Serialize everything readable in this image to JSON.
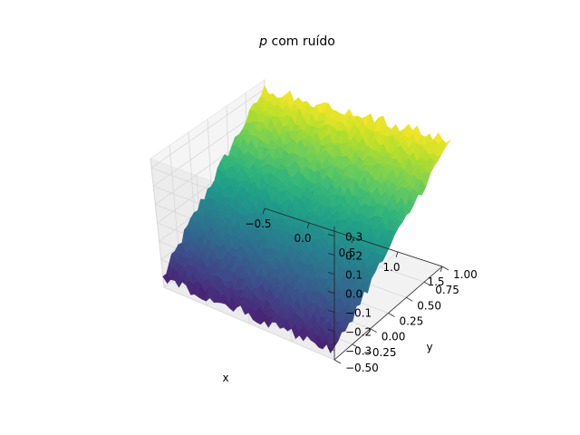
{
  "chart_data": {
    "type": "surface",
    "title_italic": "p",
    "title_rest": " com ruído",
    "xlabel": "x",
    "ylabel": "y",
    "zlabel": "",
    "xlim": [
      -0.5,
      1.5
    ],
    "ylim": [
      -0.5,
      1.0
    ],
    "zlim": [
      -0.35,
      0.35
    ],
    "x_ticks": [
      -0.5,
      0.0,
      0.5,
      1.0,
      1.5
    ],
    "x_tick_labels": [
      "−0.5",
      "0.0",
      "0.5",
      "1.0",
      "1.5"
    ],
    "y_ticks": [
      -0.5,
      -0.25,
      0.0,
      0.25,
      0.5,
      0.75,
      1.0
    ],
    "y_tick_labels": [
      "−0.50",
      "−0.25",
      "0.00",
      "0.25",
      "0.50",
      "0.75",
      "1.00"
    ],
    "z_ticks": [
      -0.3,
      -0.2,
      -0.1,
      0.0,
      0.1,
      0.2,
      0.3
    ],
    "z_tick_labels": [
      "−0.3",
      "−0.2",
      "−0.1",
      "0.0",
      "0.1",
      "0.2",
      "0.3"
    ],
    "surface": {
      "x_range": [
        -0.5,
        1.5
      ],
      "y_range": [
        -0.5,
        1.0
      ],
      "z_at_y_min": -0.3,
      "z_at_y_max": 0.3,
      "z_trend": "linear in y",
      "noise_amplitude": 0.03
    },
    "colormap": "viridis",
    "grid": true
  }
}
